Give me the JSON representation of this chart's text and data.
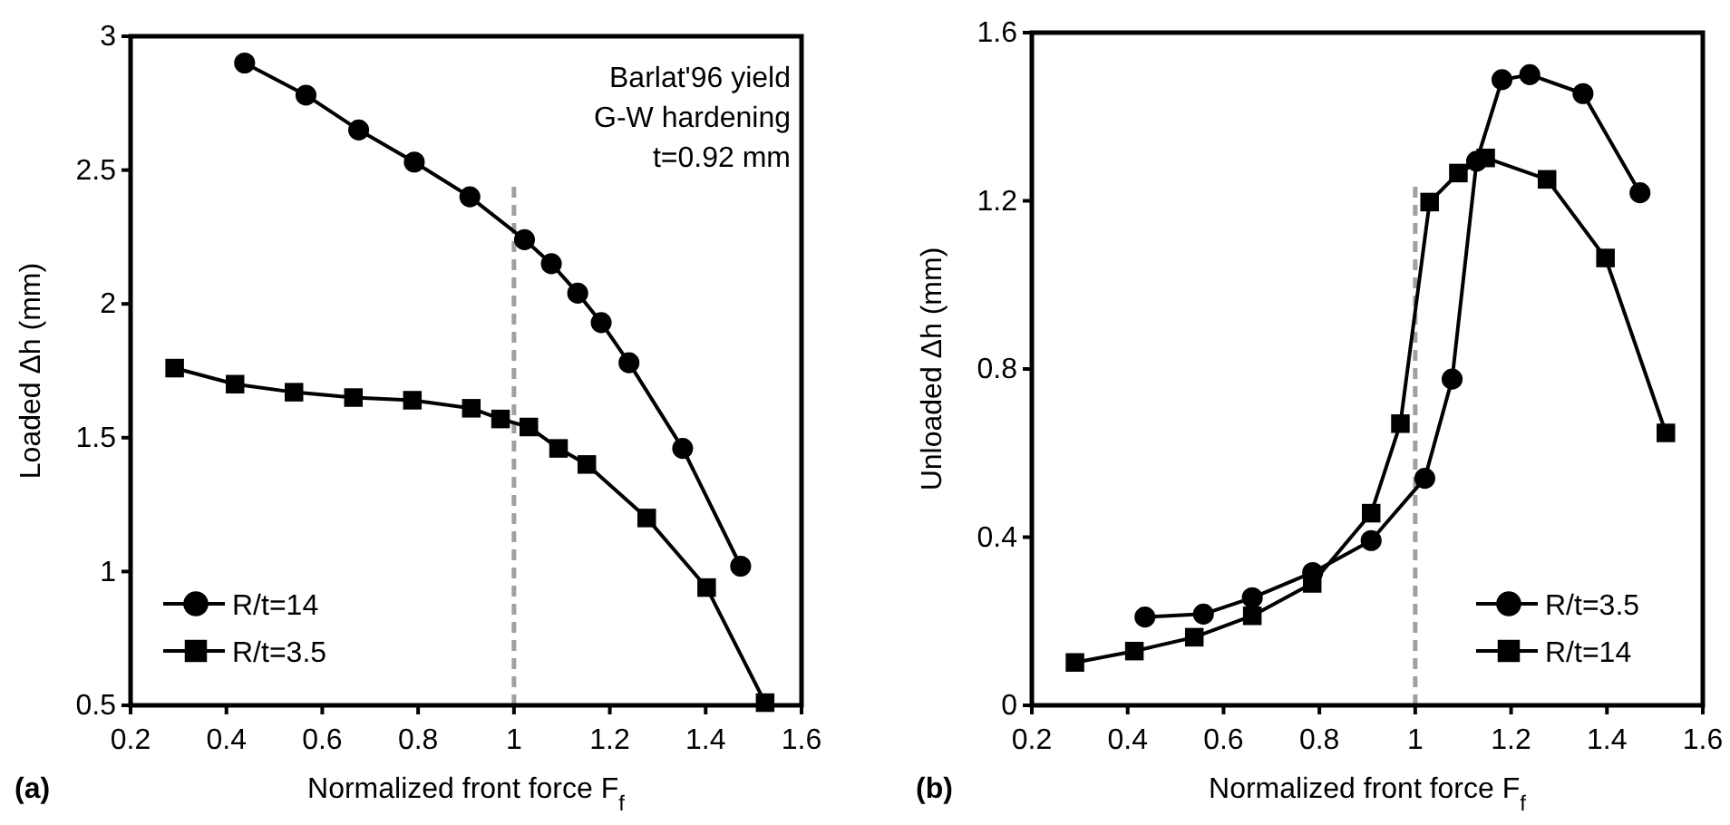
{
  "chart_data": [
    {
      "type": "line",
      "xlabel": "Normalized front force F$_{f}$",
      "ylabel": "Loaded Δh (mm)",
      "xlim": [
        0.2,
        1.6
      ],
      "xticks": [
        0.2,
        0.4,
        0.6,
        0.8,
        1,
        1.2,
        1.4,
        1.6
      ],
      "ylim": [
        0.5,
        3
      ],
      "yticks": [
        0.5,
        1,
        1.5,
        2,
        2.5,
        3
      ],
      "grid": false,
      "legend": "bottom left",
      "line_style": "solid",
      "annotations": [
        "(a)",
        "Barlat'96 yield",
        "G-W hardening",
        "t=0.92 mm"
      ],
      "ref_lines": [
        {
          "axis": "x",
          "value": 1,
          "color": "#a0a0a0",
          "line_style": "dashed"
        }
      ],
      "series": [
        {
          "name": "R/t=14",
          "color": "#000000",
          "marker": "circle",
          "x": [
            0.438,
            0.566,
            0.676,
            0.792,
            0.908,
            1.022,
            1.078,
            1.133,
            1.182,
            1.24,
            1.352,
            1.473
          ],
          "values": [
            2.9,
            2.78,
            2.65,
            2.53,
            2.4,
            2.24,
            2.15,
            2.04,
            1.93,
            1.78,
            1.46,
            1.02
          ]
        },
        {
          "name": "R/t=3.5",
          "color": "#000000",
          "marker": "square",
          "x": [
            0.292,
            0.418,
            0.541,
            0.665,
            0.788,
            0.911,
            0.972,
            1.031,
            1.093,
            1.152,
            1.277,
            1.402,
            1.524
          ],
          "values": [
            1.76,
            1.7,
            1.67,
            1.65,
            1.64,
            1.61,
            1.57,
            1.54,
            1.46,
            1.4,
            1.2,
            0.94,
            0.51
          ]
        }
      ]
    },
    {
      "type": "line",
      "xlabel": "Normalized front force F$_{f}$",
      "ylabel": "Unloaded Δh (mm)",
      "xlim": [
        0.2,
        1.6
      ],
      "xticks": [
        0.2,
        0.4,
        0.6,
        0.8,
        1,
        1.2,
        1.4,
        1.6
      ],
      "ylim": [
        0,
        1.6
      ],
      "yticks": [
        0,
        {
          "value": 0.4,
          "label": "0.4"
        },
        {
          "value": 0.8,
          "label": "0.8"
        },
        {
          "value": 1.2,
          "label": "1.2"
        },
        {
          "value": 1.6,
          "label": "1.6"
        }
      ],
      "grid": false,
      "legend": "bottom right",
      "line_style": "solid",
      "annotations": [
        "(b)"
      ],
      "ref_lines": [
        {
          "axis": "x",
          "value": 1,
          "color": "#a0a0a0",
          "line_style": "dashed"
        }
      ],
      "series": [
        {
          "name": "R/t=3.5",
          "color": "#000000",
          "marker": "circle",
          "x": [
            0.436,
            0.558,
            0.66,
            0.786,
            0.908,
            1.02,
            1.077,
            1.128,
            1.181,
            1.239,
            1.35,
            1.469
          ],
          "values": [
            0.21,
            0.217,
            0.256,
            0.316,
            0.392,
            0.54,
            0.776,
            1.294,
            1.488,
            1.5,
            1.455,
            1.219
          ]
        },
        {
          "name": "R/t=14",
          "color": "#000000",
          "marker": "square",
          "x": [
            0.29,
            0.414,
            0.539,
            0.66,
            0.785,
            0.908,
            0.969,
            1.03,
            1.09,
            1.147,
            1.275,
            1.397,
            1.523
          ],
          "values": [
            0.102,
            0.129,
            0.162,
            0.213,
            0.29,
            0.457,
            0.67,
            1.197,
            1.266,
            1.302,
            1.251,
            1.064,
            0.648
          ]
        }
      ]
    }
  ]
}
